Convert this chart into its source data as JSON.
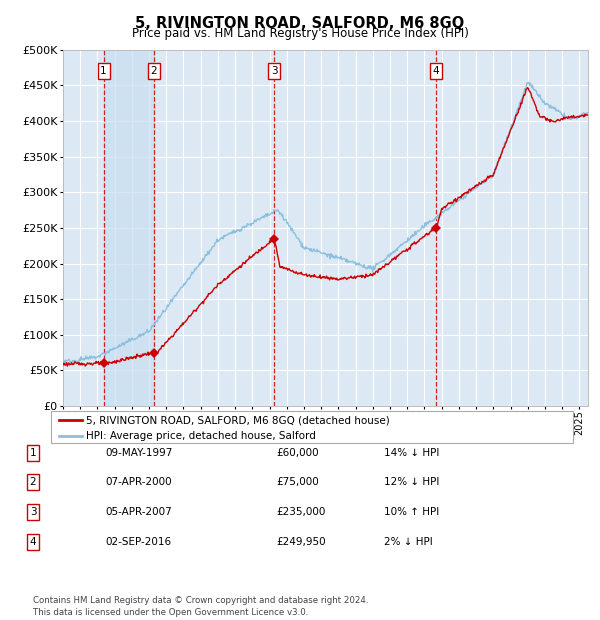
{
  "title": "5, RIVINGTON ROAD, SALFORD, M6 8GQ",
  "subtitle": "Price paid vs. HM Land Registry's House Price Index (HPI)",
  "background_color": "#dce9f5",
  "plot_bg_color": "#dce9f5",
  "grid_color": "#ffffff",
  "hpi_line_color": "#8bbfdd",
  "price_line_color": "#cc0000",
  "sale_marker_color": "#cc0000",
  "vline_color": "#cc0000",
  "sale_points": [
    {
      "date": 1997.36,
      "price": 60000,
      "label": "1"
    },
    {
      "date": 2000.27,
      "price": 75000,
      "label": "2"
    },
    {
      "date": 2007.27,
      "price": 235000,
      "label": "3"
    },
    {
      "date": 2016.67,
      "price": 249950,
      "label": "4"
    }
  ],
  "legend_entries": [
    "5, RIVINGTON ROAD, SALFORD, M6 8GQ (detached house)",
    "HPI: Average price, detached house, Salford"
  ],
  "table_rows": [
    {
      "num": "1",
      "date": "09-MAY-1997",
      "price": "£60,000",
      "hpi": "14% ↓ HPI"
    },
    {
      "num": "2",
      "date": "07-APR-2000",
      "price": "£75,000",
      "hpi": "12% ↓ HPI"
    },
    {
      "num": "3",
      "date": "05-APR-2007",
      "price": "£235,000",
      "hpi": "10% ↑ HPI"
    },
    {
      "num": "4",
      "date": "02-SEP-2016",
      "price": "£249,950",
      "hpi": "2% ↓ HPI"
    }
  ],
  "footer": "Contains HM Land Registry data © Crown copyright and database right 2024.\nThis data is licensed under the Open Government Licence v3.0.",
  "xmin": 1995.0,
  "xmax": 2025.5,
  "ymin": 0,
  "ymax": 500000,
  "yticks": [
    0,
    50000,
    100000,
    150000,
    200000,
    250000,
    300000,
    350000,
    400000,
    450000,
    500000
  ]
}
